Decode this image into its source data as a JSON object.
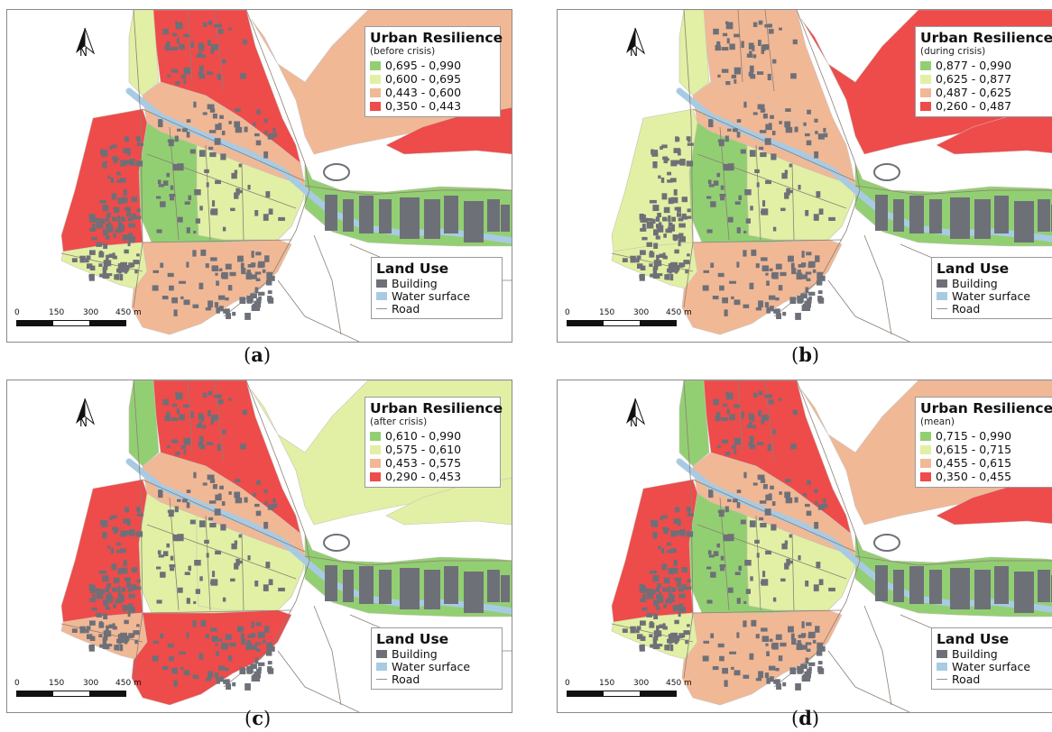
{
  "colors": {
    "green": "#92cf72",
    "yellow": "#e1f0a4",
    "orange": "#f1b896",
    "red": "#ee4b4b",
    "building": "#6e7078",
    "water": "#a8cbe3",
    "road": "#a09088"
  },
  "north_label": "N",
  "scale": {
    "t0": "0",
    "t1": "150",
    "t2": "300",
    "t3": "450 m"
  },
  "land_use": {
    "title": "Land Use",
    "items": [
      {
        "label": "Building",
        "icon": "building-swatch"
      },
      {
        "label": "Water surface",
        "icon": "water-swatch"
      },
      {
        "label": "Road",
        "icon": "road-line"
      }
    ]
  },
  "panels": [
    {
      "caption_open": "(",
      "caption_letter": "a",
      "caption_close": ")",
      "legend_title": "Urban Resilience",
      "legend_subtitle": "(before crisis)",
      "classes": [
        "0,695 - 0,990",
        "0,600 - 0,695",
        "0,443 - 0,600",
        "0,350 - 0,443"
      ]
    },
    {
      "caption_open": "(",
      "caption_letter": "b",
      "caption_close": ")",
      "legend_title": "Urban Resilience",
      "legend_subtitle": "(during crisis)",
      "classes": [
        "0,877 - 0,990",
        "0,625 - 0,877",
        "0,487 - 0,625",
        "0,260 - 0,487"
      ]
    },
    {
      "caption_open": "(",
      "caption_letter": "c",
      "caption_close": ")",
      "legend_title": "Urban Resilience",
      "legend_subtitle": "(after crisis)",
      "classes": [
        "0,610 - 0,990",
        "0,575 - 0,610",
        "0,453 - 0,575",
        "0,290 - 0,453"
      ]
    },
    {
      "caption_open": "(",
      "caption_letter": "d",
      "caption_close": ")",
      "legend_title": "Urban Resilience",
      "legend_subtitle": "(mean)",
      "classes": [
        "0,715 - 0,990",
        "0,615 - 0,715",
        "0,455 - 0,615",
        "0,350 - 0,455"
      ]
    }
  ],
  "zone_classes": {
    "a": {
      "north": "red",
      "northwest_strip": "yellow",
      "center_west": "orange",
      "center": "green",
      "center_east": "yellow",
      "west": "red",
      "southwest": "yellow",
      "south": "orange",
      "northeast_hill": "orange",
      "northeast_corner": "red",
      "east": "green"
    },
    "b": {
      "north": "orange",
      "northwest_strip": "yellow",
      "center_west": "orange",
      "center": "green",
      "center_east": "yellow",
      "west": "yellow",
      "southwest": "yellow",
      "south": "orange",
      "northeast_hill": "red",
      "northeast_corner": "red",
      "east": "green"
    },
    "c": {
      "north": "red",
      "northwest_strip": "green",
      "center_west": "orange",
      "center": "yellow",
      "center_east": "yellow",
      "west": "red",
      "southwest": "orange",
      "south": "red",
      "northeast_hill": "yellow",
      "northeast_corner": "yellow",
      "east": "green"
    },
    "d": {
      "north": "red",
      "northwest_strip": "green",
      "center_west": "orange",
      "center": "green",
      "center_east": "yellow",
      "west": "red",
      "southwest": "yellow",
      "south": "orange",
      "northeast_hill": "orange",
      "northeast_corner": "red",
      "east": "green"
    }
  }
}
